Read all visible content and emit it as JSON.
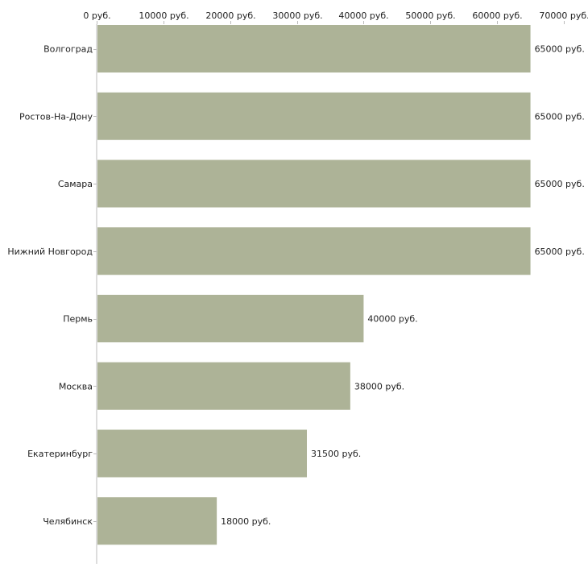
{
  "chart_data": {
    "type": "bar",
    "orientation": "horizontal",
    "title": "",
    "xlabel": "",
    "ylabel": "",
    "xlim": [
      0,
      70000
    ],
    "x_ticks": [
      {
        "value": 0,
        "label": "0 руб."
      },
      {
        "value": 10000,
        "label": "10000 руб."
      },
      {
        "value": 20000,
        "label": "20000 руб."
      },
      {
        "value": 30000,
        "label": "30000 руб."
      },
      {
        "value": 40000,
        "label": "40000 руб."
      },
      {
        "value": 50000,
        "label": "50000 руб."
      },
      {
        "value": 60000,
        "label": "60000 руб."
      },
      {
        "value": 70000,
        "label": "70000 руб."
      }
    ],
    "categories": [
      "Волгоград",
      "Ростов-На-Дону",
      "Самара",
      "Нижний Новгород",
      "Пермь",
      "Москва",
      "Екатеринбург",
      "Челябинск"
    ],
    "values": [
      65000,
      65000,
      65000,
      65000,
      40000,
      38000,
      31500,
      18000
    ],
    "value_labels": [
      "65000 руб.",
      "65000 руб.",
      "65000 руб.",
      "65000 руб.",
      "40000 руб.",
      "38000 руб.",
      "31500 руб.",
      "18000 руб."
    ],
    "grid": false,
    "colors": {
      "bar": "#adb397",
      "axis": "#bbbbbb",
      "text": "#222222"
    }
  }
}
